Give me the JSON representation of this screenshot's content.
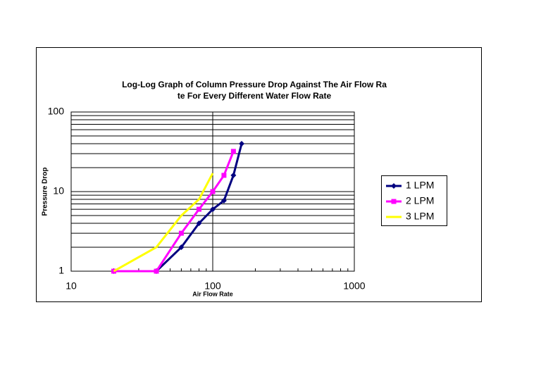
{
  "chart_data": {
    "type": "line",
    "title": [
      "Log-Log Graph of Column Pressure Drop Against The Air Flow Ra",
      "te For Every Different Water Flow Rate"
    ],
    "x_label": "Air Flow Rate",
    "y_label": "Pressure Drop",
    "x_log": true,
    "y_log": true,
    "xlim": [
      10,
      1000
    ],
    "xticks": [
      10,
      100,
      1000
    ],
    "ylim": [
      1,
      100
    ],
    "yticks": [
      1,
      10,
      100
    ],
    "grid": true,
    "legend": "right",
    "series": [
      {
        "name": "1 LPM",
        "color": "#000080",
        "marker": "diamond",
        "x": [
          20,
          40,
          60,
          80,
          100,
          120,
          140,
          160
        ],
        "values": [
          1,
          1,
          2,
          4,
          6,
          7.7,
          16,
          40
        ]
      },
      {
        "name": "2 LPM",
        "color": "#ff00ff",
        "marker": "square",
        "x": [
          20,
          40,
          60,
          80,
          100,
          120,
          140
        ],
        "values": [
          1,
          1,
          3,
          6,
          10,
          16,
          32
        ]
      },
      {
        "name": "3 LPM",
        "color": "#ffff00",
        "marker": "none",
        "x": [
          20,
          40,
          60,
          80,
          100
        ],
        "values": [
          1,
          2,
          5,
          8,
          17
        ]
      }
    ]
  }
}
